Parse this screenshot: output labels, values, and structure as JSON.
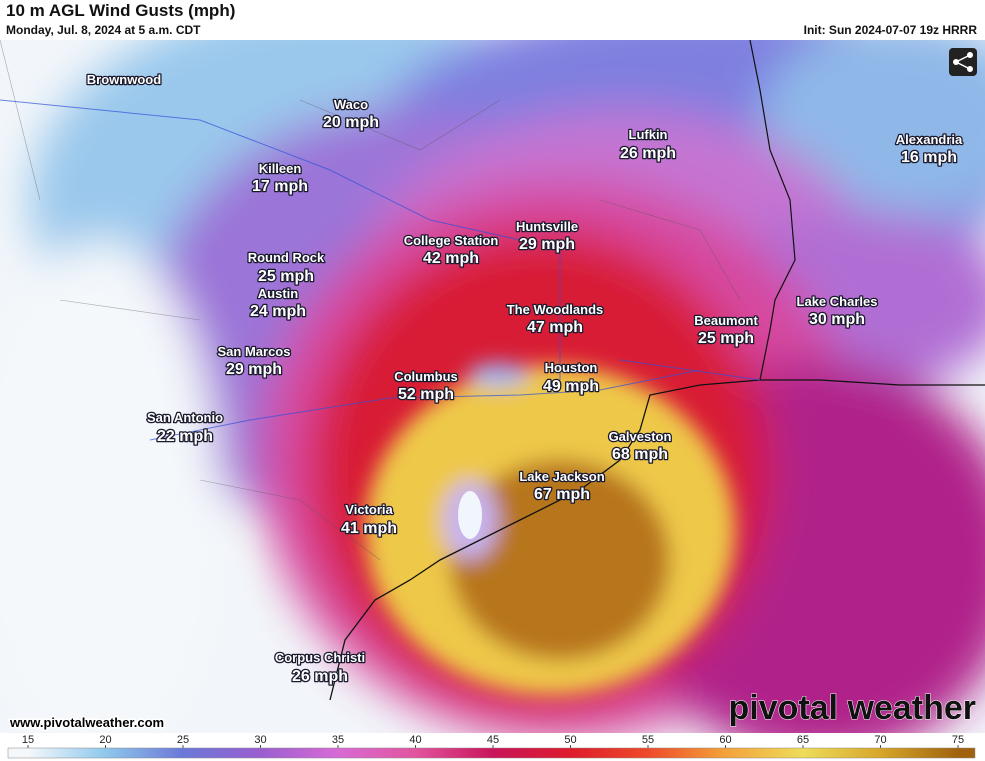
{
  "header": {
    "title": "10 m AGL Wind Gusts (mph)",
    "subtitle": "Monday, Jul. 8, 2024 at 5 a.m. CDT",
    "init": "Init: Sun 2024-07-07 19z HRRR"
  },
  "cities": [
    {
      "name": "Brownwood"
    },
    {
      "name": "Waco",
      "gust": "20 mph"
    },
    {
      "name": "Killeen",
      "gust": "17 mph"
    },
    {
      "name": "Lufkin",
      "gust": "26 mph"
    },
    {
      "name": "Alexandria",
      "gust": "16 mph"
    },
    {
      "name": "Huntsville",
      "gust": "29 mph"
    },
    {
      "name": "College Station",
      "gust": "42 mph"
    },
    {
      "name": "Round Rock",
      "gust": "25 mph"
    },
    {
      "name": "Austin",
      "gust": "24 mph"
    },
    {
      "name": "The Woodlands",
      "gust": "47 mph"
    },
    {
      "name": "Beaumont",
      "gust": "25 mph"
    },
    {
      "name": "Lake Charles",
      "gust": "30 mph"
    },
    {
      "name": "San Marcos",
      "gust": "29 mph"
    },
    {
      "name": "Houston",
      "gust": "49 mph"
    },
    {
      "name": "Columbus",
      "gust": "52 mph"
    },
    {
      "name": "San Antonio",
      "gust": "22 mph"
    },
    {
      "name": "Galveston",
      "gust": "68 mph"
    },
    {
      "name": "Lake Jackson",
      "gust": "67 mph"
    },
    {
      "name": "Victoria",
      "gust": "41 mph"
    },
    {
      "name": "Corpus Christi",
      "gust": "26 mph"
    }
  ],
  "footer": {
    "website": "www.pivotalweather.com",
    "logo": "pivotal weather"
  },
  "colorbar": {
    "ticks": [
      15,
      20,
      25,
      30,
      35,
      40,
      45,
      50,
      55,
      60,
      65,
      70,
      75
    ],
    "colors": [
      "#f4f8fb",
      "#8fc8ec",
      "#6b78d8",
      "#9a5ed0",
      "#d86ad6",
      "#e2559e",
      "#c8145a",
      "#de1c2c",
      "#ee4a2a",
      "#f4a23a",
      "#eedc5a",
      "#d6a62a",
      "#a0620e"
    ]
  }
}
